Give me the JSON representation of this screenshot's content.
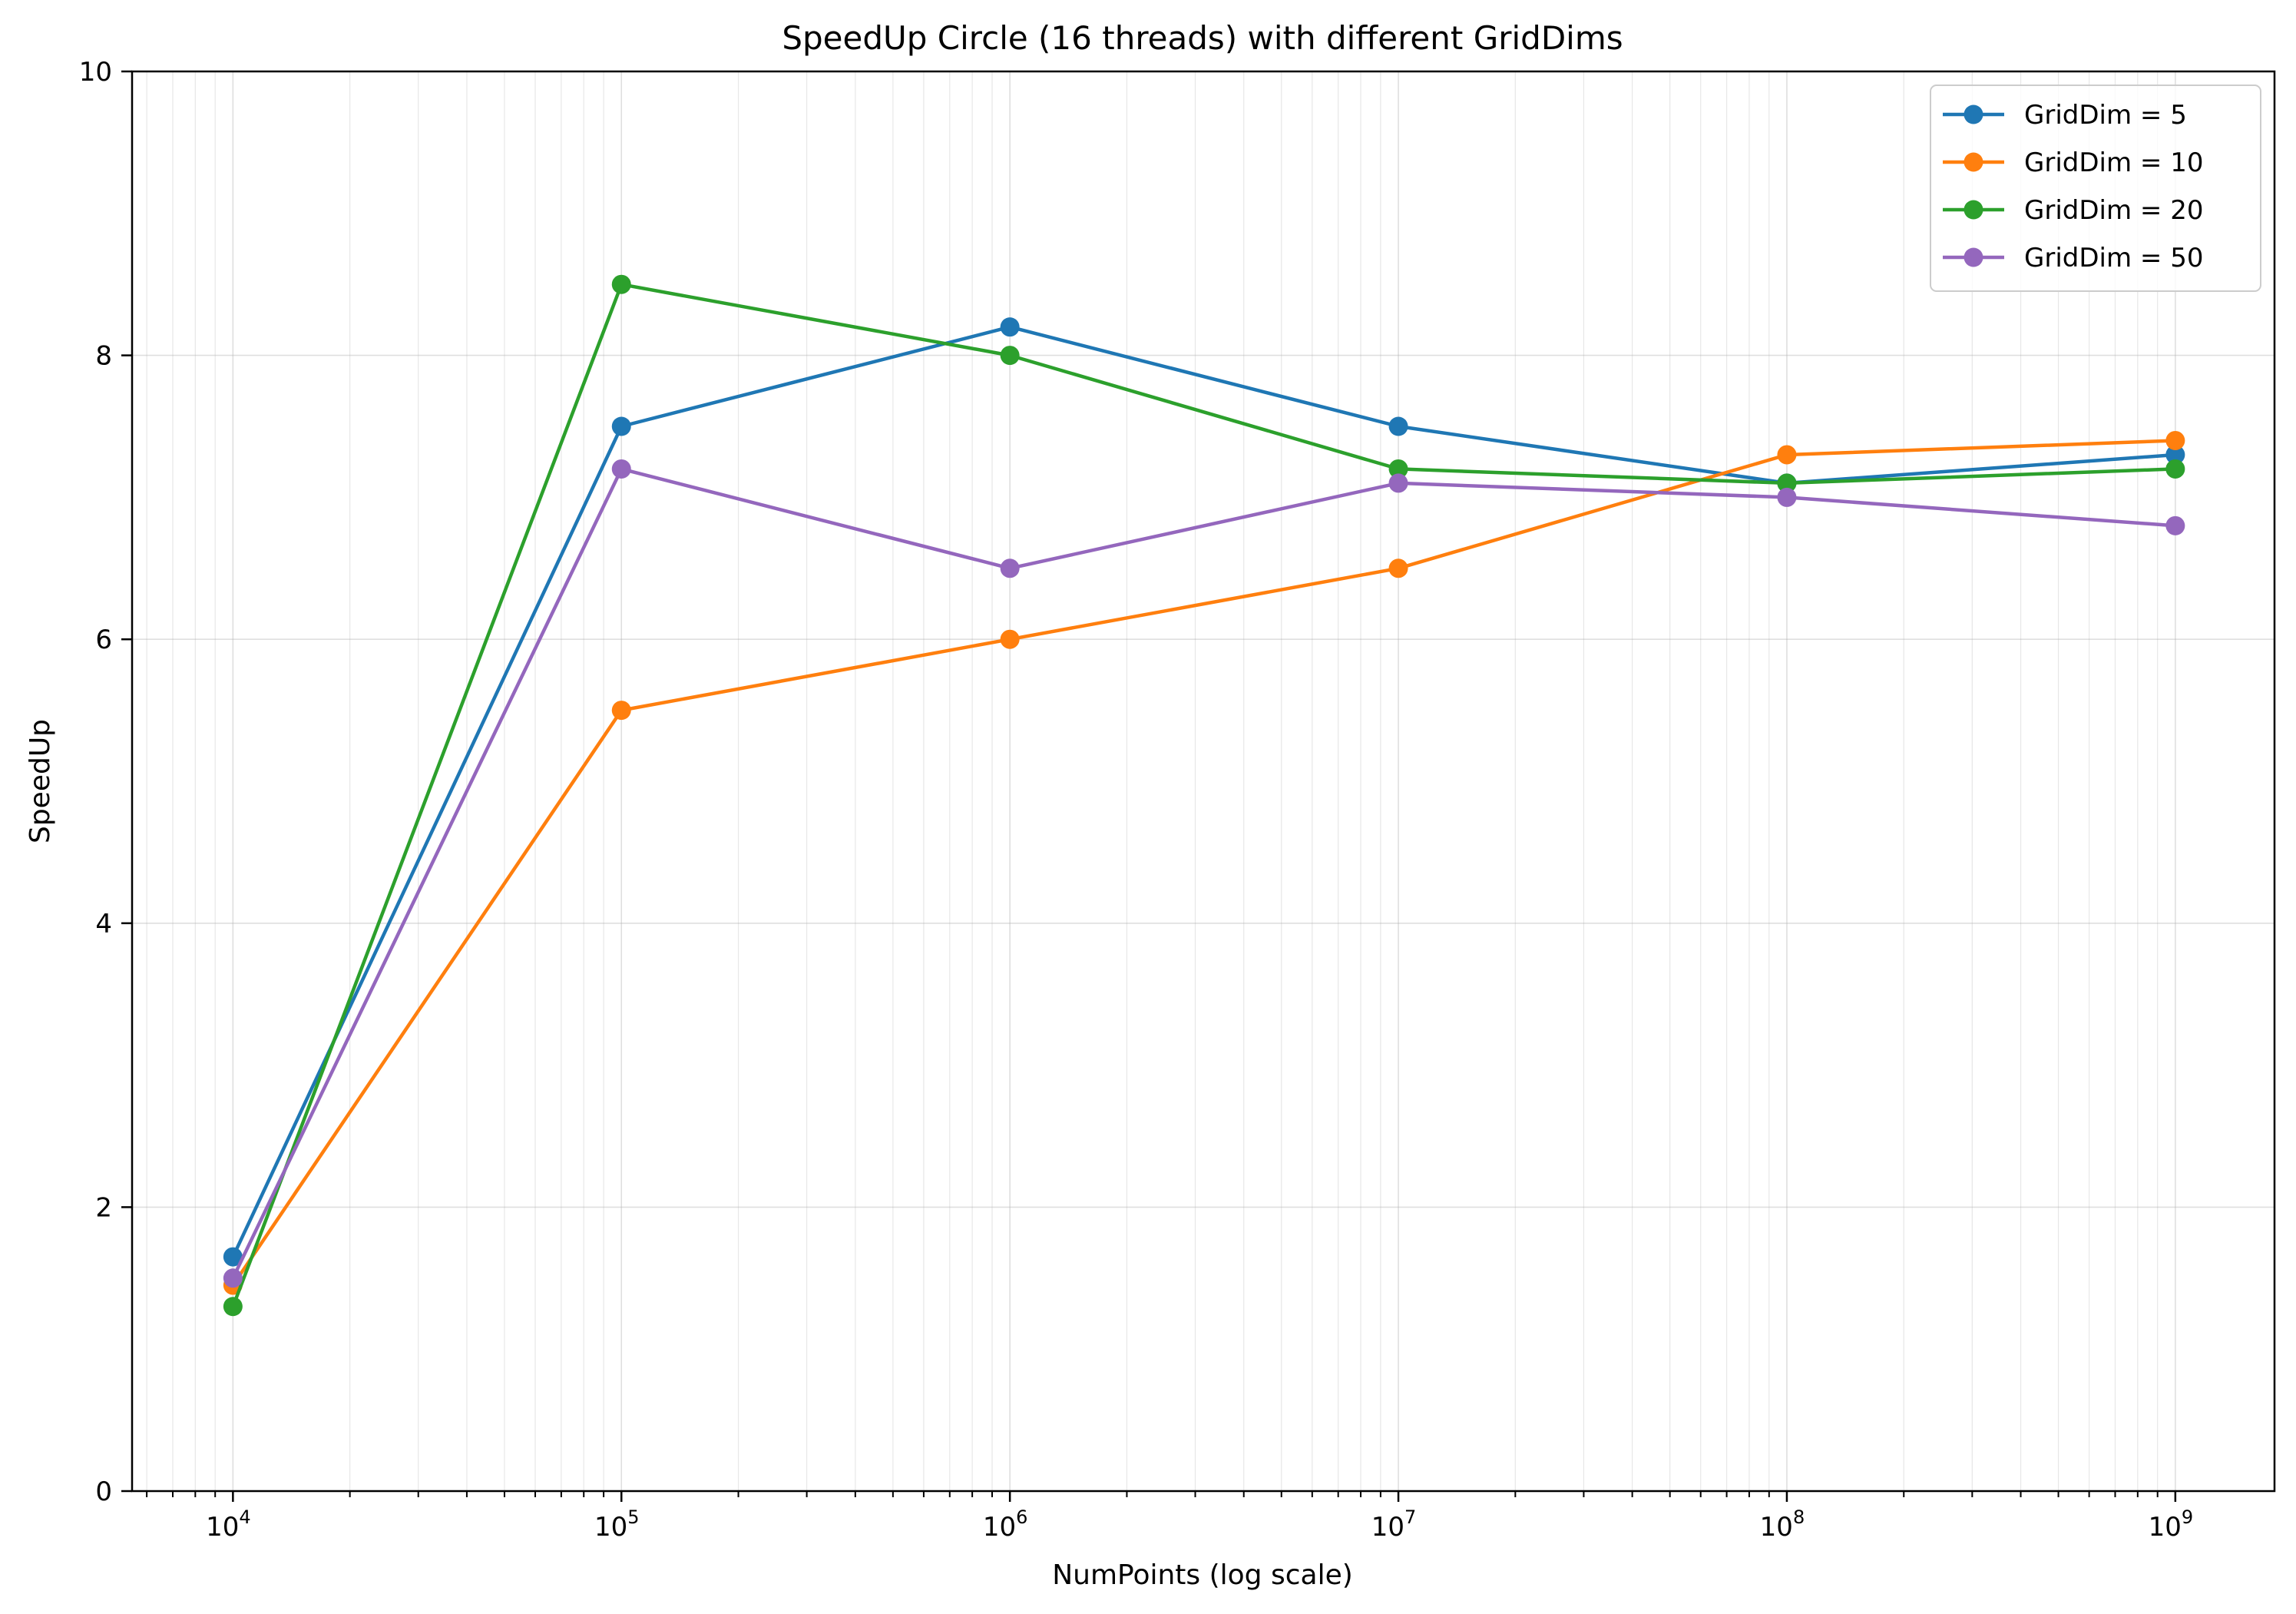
{
  "chart_data": {
    "type": "line",
    "title": "SpeedUp Circle (16 threads) with different GridDims",
    "xlabel": "NumPoints (log scale)",
    "ylabel": "SpeedUp",
    "xscale": "log",
    "xlim": [
      5500,
      1800000000
    ],
    "ylim": [
      0,
      10
    ],
    "x": [
      10000,
      100000,
      1000000,
      10000000,
      100000000,
      1000000000
    ],
    "xticks": [
      {
        "value": 10000,
        "base": "10",
        "exp": "4"
      },
      {
        "value": 100000,
        "base": "10",
        "exp": "5"
      },
      {
        "value": 1000000,
        "base": "10",
        "exp": "6"
      },
      {
        "value": 10000000,
        "base": "10",
        "exp": "7"
      },
      {
        "value": 100000000,
        "base": "10",
        "exp": "8"
      },
      {
        "value": 1000000000,
        "base": "10",
        "exp": "9"
      }
    ],
    "yticks": [
      {
        "value": 0,
        "label": "0"
      },
      {
        "value": 2,
        "label": "2"
      },
      {
        "value": 4,
        "label": "4"
      },
      {
        "value": 6,
        "label": "6"
      },
      {
        "value": 8,
        "label": "8"
      },
      {
        "value": 10,
        "label": "10"
      }
    ],
    "grid": true,
    "legend_position": "top-right",
    "series": [
      {
        "name": "GridDim = 5",
        "color": "#1f77b4",
        "values": [
          1.65,
          7.5,
          8.2,
          7.5,
          7.1,
          7.3
        ]
      },
      {
        "name": "GridDim = 10",
        "color": "#ff7f0e",
        "values": [
          1.45,
          5.5,
          6.0,
          6.5,
          7.3,
          7.4
        ]
      },
      {
        "name": "GridDim = 20",
        "color": "#2ca02c",
        "values": [
          1.3,
          8.5,
          8.0,
          7.2,
          7.1,
          7.2
        ]
      },
      {
        "name": "GridDim = 50",
        "color": "#9467bd",
        "values": [
          1.5,
          7.2,
          6.5,
          7.1,
          7.0,
          6.8
        ]
      }
    ]
  }
}
